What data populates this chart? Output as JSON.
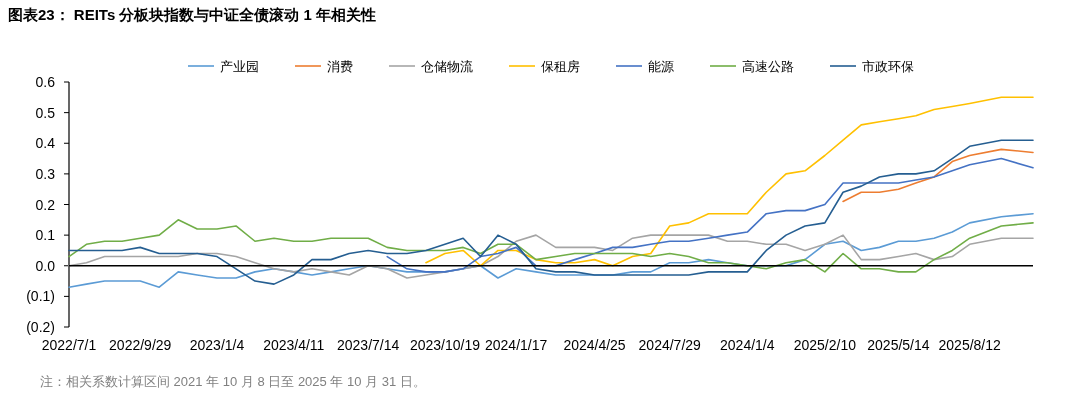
{
  "chart_data": {
    "type": "line",
    "title": "图表23： REITs 分板块指数与中证全债滚动 1 年相关性",
    "annotations": [
      "注：相关系数计算区间 2021 年 10 月 8 日至 2025 年 10 月 31 日。"
    ],
    "legend": "top",
    "line_style": "solid",
    "x": [
      "2022-07-01",
      "2022-07-23",
      "2022-08-15",
      "2022-09-06",
      "2022-09-29",
      "2022-10-23",
      "2022-11-16",
      "2022-12-10",
      "2023-01-04",
      "2023-01-28",
      "2023-02-21",
      "2023-03-17",
      "2023-04-11",
      "2023-05-04",
      "2023-05-28",
      "2023-06-20",
      "2023-07-14",
      "2023-08-07",
      "2023-09-01",
      "2023-09-25",
      "2023-10-19",
      "2023-11-11",
      "2023-12-03",
      "2023-12-25",
      "2024-01-17",
      "2024-02-11",
      "2024-03-07",
      "2024-03-31",
      "2024-04-25",
      "2024-05-18",
      "2024-06-12",
      "2024-07-05",
      "2024-07-29",
      "2024-08-22",
      "2024-09-16",
      "2024-10-10",
      "2024-11-04",
      "2024-11-28",
      "2024-12-23",
      "2025-01-16",
      "2025-02-10",
      "2025-03-05",
      "2025-03-28",
      "2025-04-20",
      "2025-05-14",
      "2025-06-05",
      "2025-06-28",
      "2025-07-21",
      "2025-08-12",
      "2025-09-21",
      "2025-10-31"
    ],
    "xlim": [
      "2022-07-01",
      "2025-10-31"
    ],
    "xticks": [
      {
        "value": "2022-07-01",
        "label": "2022/7/1"
      },
      {
        "value": "2022-09-29",
        "label": "2022/9/29"
      },
      {
        "value": "2023-01-04",
        "label": "2023/1/4"
      },
      {
        "value": "2023-04-11",
        "label": "2023/4/11"
      },
      {
        "value": "2023-07-14",
        "label": "2023/7/14"
      },
      {
        "value": "2023-10-19",
        "label": "2023/10/19"
      },
      {
        "value": "2024-01-17",
        "label": "2024/1/17"
      },
      {
        "value": "2024-04-25",
        "label": "2024/4/25"
      },
      {
        "value": "2024-07-29",
        "label": "2024/7/29"
      },
      {
        "value": "2024-11-04",
        "label": "2024/1/4"
      },
      {
        "value": "2025-02-10",
        "label": "2025/2/10"
      },
      {
        "value": "2025-05-14",
        "label": "2025/5/14"
      },
      {
        "value": "2025-08-12",
        "label": "2025/8/12"
      }
    ],
    "ylim": [
      -0.2,
      0.6
    ],
    "yticks": [
      {
        "value": -0.2,
        "label": "(0.2)"
      },
      {
        "value": -0.1,
        "label": "(0.1)"
      },
      {
        "value": 0,
        "label": "0.0"
      },
      0.1,
      0.2,
      0.3,
      0.4,
      0.5,
      0.6
    ],
    "ref_lines": [
      {
        "axis": "y",
        "value": 0,
        "color": "#000000"
      }
    ],
    "series": [
      {
        "name": "产业园",
        "color": "#5b9bd5",
        "values": [
          -0.07,
          -0.06,
          -0.05,
          -0.05,
          -0.05,
          -0.07,
          -0.02,
          -0.03,
          -0.04,
          -0.04,
          -0.02,
          -0.01,
          -0.02,
          -0.03,
          -0.02,
          -0.01,
          0,
          -0.01,
          -0.02,
          -0.02,
          -0.02,
          -0.01,
          0,
          -0.04,
          -0.01,
          -0.02,
          -0.03,
          -0.03,
          -0.03,
          -0.03,
          -0.02,
          -0.02,
          0.01,
          0.01,
          0.02,
          0.01,
          0,
          0,
          0,
          0.02,
          0.07,
          0.08,
          0.05,
          0.06,
          0.08,
          0.08,
          0.09,
          0.11,
          0.14,
          0.16,
          0.17
        ]
      },
      {
        "name": "消费",
        "color": "#ed7d31",
        "values": [
          null,
          null,
          null,
          null,
          null,
          null,
          null,
          null,
          null,
          null,
          null,
          null,
          null,
          null,
          null,
          null,
          null,
          null,
          null,
          null,
          null,
          null,
          null,
          null,
          null,
          null,
          null,
          null,
          null,
          null,
          null,
          null,
          null,
          null,
          null,
          null,
          null,
          null,
          null,
          null,
          null,
          0.21,
          0.24,
          0.24,
          0.25,
          0.27,
          0.29,
          0.34,
          0.36,
          0.38,
          0.37
        ]
      },
      {
        "name": "仓储物流",
        "color": "#a5a5a5",
        "values": [
          0,
          0.01,
          0.03,
          0.03,
          0.03,
          0.03,
          0.03,
          0.04,
          0.04,
          0.03,
          0.01,
          -0.01,
          -0.02,
          -0.01,
          -0.02,
          -0.03,
          0,
          -0.01,
          -0.04,
          -0.03,
          -0.02,
          -0.01,
          0,
          0.03,
          0.08,
          0.1,
          0.06,
          0.06,
          0.06,
          0.05,
          0.09,
          0.1,
          0.1,
          0.1,
          0.1,
          0.08,
          0.08,
          0.07,
          0.07,
          0.05,
          0.07,
          0.1,
          0.02,
          0.02,
          0.03,
          0.04,
          0.02,
          0.03,
          0.07,
          0.09,
          0.09
        ]
      },
      {
        "name": "保租房",
        "color": "#ffc000",
        "values": [
          null,
          null,
          null,
          null,
          null,
          null,
          null,
          null,
          null,
          null,
          null,
          null,
          null,
          null,
          null,
          null,
          null,
          null,
          null,
          0.01,
          0.04,
          0.05,
          0,
          0.05,
          0.05,
          0.02,
          0.01,
          0.01,
          0.02,
          0,
          0.03,
          0.04,
          0.13,
          0.14,
          0.17,
          0.17,
          0.17,
          0.24,
          0.3,
          0.31,
          0.36,
          0.41,
          0.46,
          0.47,
          0.48,
          0.49,
          0.51,
          0.52,
          0.53,
          0.55,
          0.55
        ]
      },
      {
        "name": "能源",
        "color": "#4472c4",
        "values": [
          null,
          null,
          null,
          null,
          null,
          null,
          null,
          null,
          null,
          null,
          null,
          null,
          null,
          null,
          null,
          null,
          null,
          0.03,
          -0.01,
          -0.02,
          -0.02,
          -0.01,
          0.03,
          0.04,
          0.06,
          0,
          0,
          0.02,
          0.04,
          0.06,
          0.06,
          0.07,
          0.08,
          0.08,
          0.09,
          0.1,
          0.11,
          0.17,
          0.18,
          0.18,
          0.2,
          0.27,
          0.27,
          0.27,
          0.27,
          0.28,
          0.29,
          0.31,
          0.33,
          0.35,
          0.32
        ]
      },
      {
        "name": "高速公路",
        "color": "#70ad47",
        "values": [
          0.03,
          0.07,
          0.08,
          0.08,
          0.09,
          0.1,
          0.15,
          0.12,
          0.12,
          0.13,
          0.08,
          0.09,
          0.08,
          0.08,
          0.09,
          0.09,
          0.09,
          0.06,
          0.05,
          0.05,
          0.05,
          0.06,
          0.04,
          0.07,
          0.07,
          0.02,
          0.03,
          0.04,
          0.04,
          0.04,
          0.04,
          0.03,
          0.04,
          0.03,
          0.01,
          0.01,
          0,
          -0.01,
          0.01,
          0.02,
          -0.02,
          0.04,
          -0.01,
          -0.01,
          -0.02,
          -0.02,
          0.02,
          0.05,
          0.09,
          0.13,
          0.14
        ]
      },
      {
        "name": "市政环保",
        "color": "#255e91",
        "values": [
          0.05,
          0.05,
          0.05,
          0.05,
          0.06,
          0.04,
          0.04,
          0.04,
          0.03,
          -0.01,
          -0.05,
          -0.06,
          -0.03,
          0.02,
          0.02,
          0.04,
          0.05,
          0.04,
          0.04,
          0.05,
          0.07,
          0.09,
          0.03,
          0.1,
          0.07,
          -0.01,
          -0.02,
          -0.02,
          -0.03,
          -0.03,
          -0.03,
          -0.03,
          -0.03,
          -0.03,
          -0.02,
          -0.02,
          -0.02,
          0.05,
          0.1,
          0.13,
          0.14,
          0.24,
          0.26,
          0.29,
          0.3,
          0.3,
          0.31,
          0.35,
          0.39,
          0.41,
          0.41
        ]
      }
    ]
  }
}
